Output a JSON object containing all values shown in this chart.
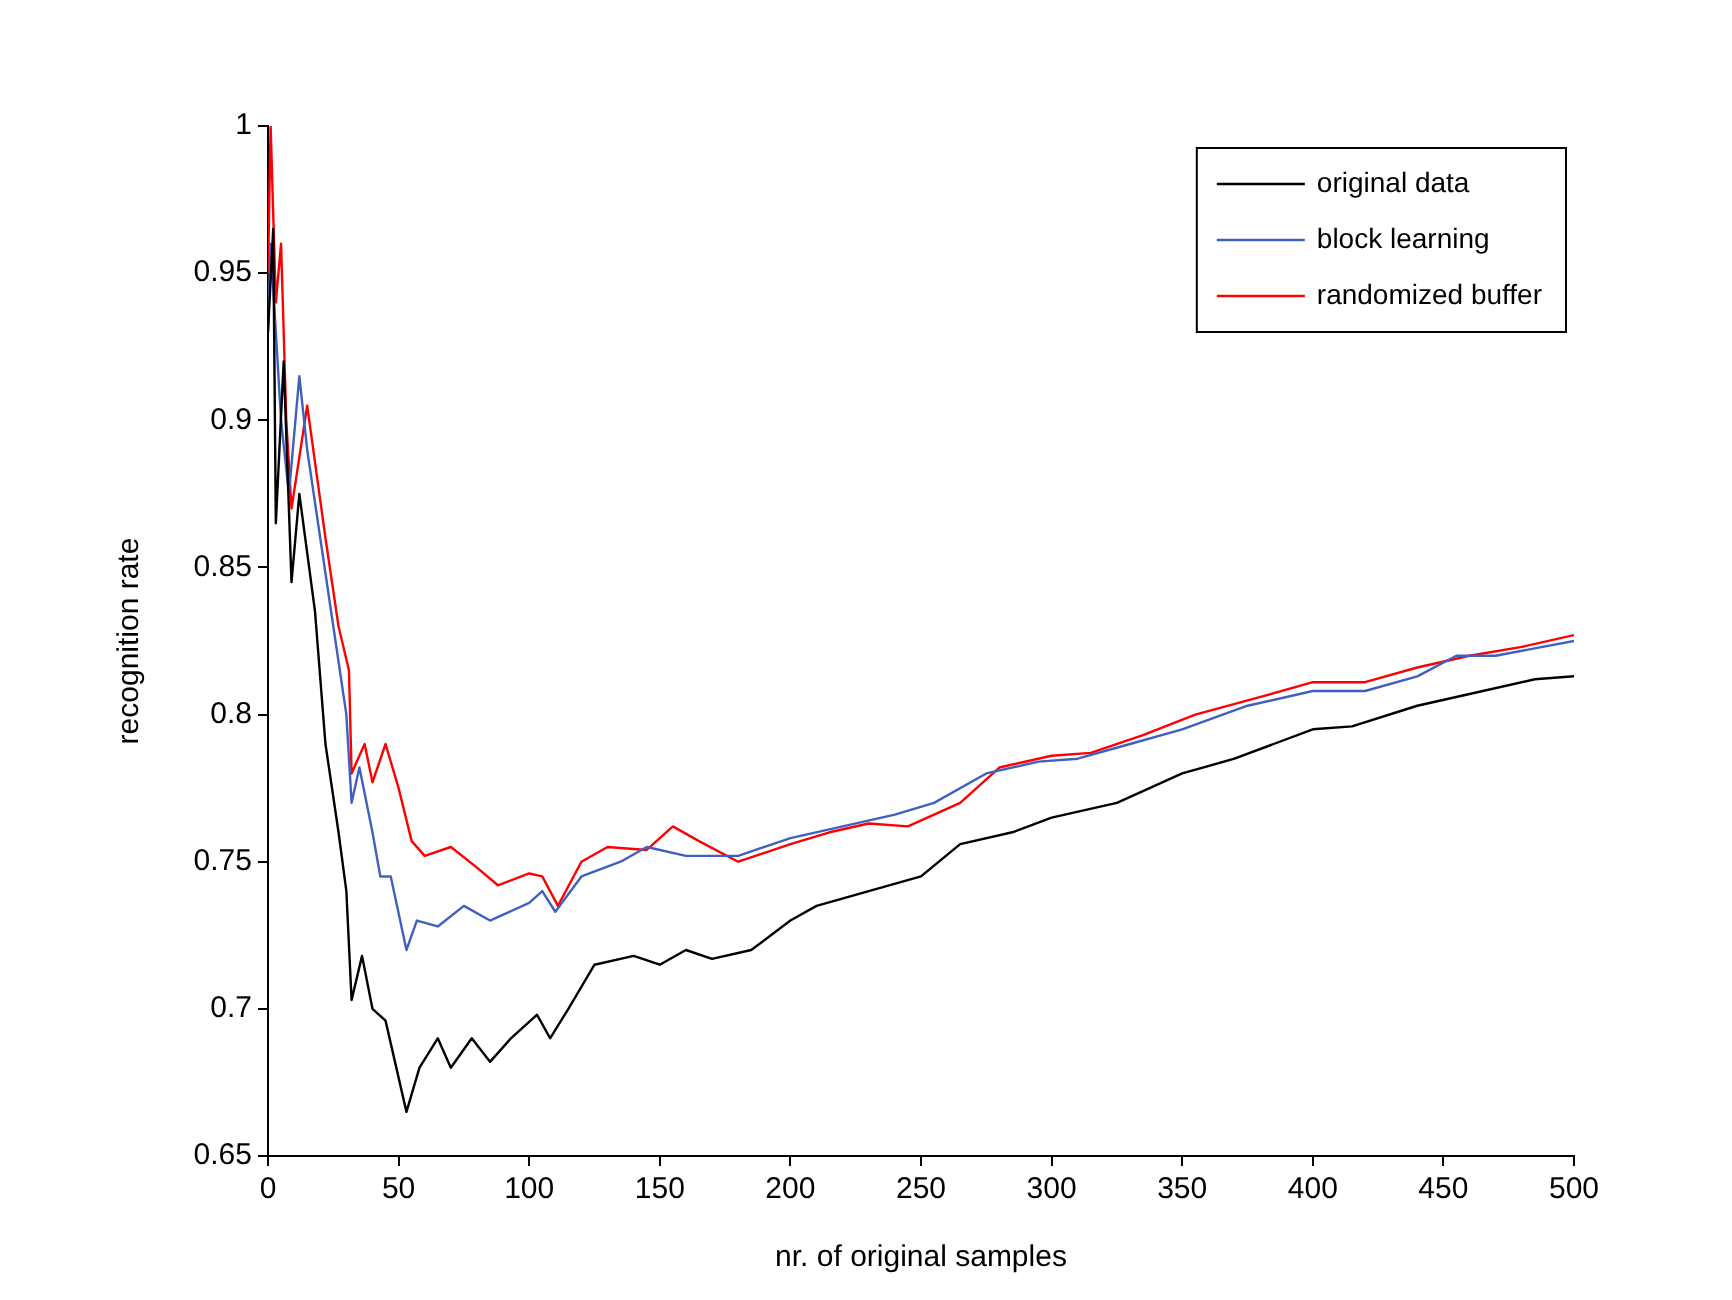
{
  "chart_data": {
    "type": "line",
    "xlabel": "nr. of original samples",
    "ylabel": "recognition rate",
    "xlim": [
      0,
      500
    ],
    "xticks": [
      0,
      50,
      100,
      150,
      200,
      250,
      300,
      350,
      400,
      450,
      500
    ],
    "ylim": [
      0.65,
      1
    ],
    "yticks": [
      0.65,
      0.7,
      0.75,
      0.8,
      0.85,
      0.9,
      0.95,
      1
    ],
    "grid": false,
    "legend": "top right",
    "marker": "none",
    "line_style": "solid",
    "series": [
      {
        "name": "original data",
        "color": "#000000",
        "x": [
          0,
          2,
          3,
          6,
          9,
          12,
          18,
          22,
          27,
          30,
          32,
          36,
          40,
          45,
          53,
          58,
          65,
          70,
          78,
          85,
          93,
          103,
          108,
          115,
          125,
          140,
          150,
          160,
          170,
          185,
          200,
          210,
          230,
          250,
          265,
          285,
          300,
          325,
          350,
          370,
          385,
          400,
          415,
          440,
          460,
          485,
          500
        ],
        "values": [
          0.93,
          0.965,
          0.865,
          0.92,
          0.845,
          0.875,
          0.835,
          0.79,
          0.76,
          0.74,
          0.703,
          0.718,
          0.7,
          0.696,
          0.665,
          0.68,
          0.69,
          0.68,
          0.69,
          0.682,
          0.69,
          0.698,
          0.69,
          0.7,
          0.715,
          0.718,
          0.715,
          0.72,
          0.717,
          0.72,
          0.73,
          0.735,
          0.74,
          0.745,
          0.756,
          0.76,
          0.765,
          0.77,
          0.78,
          0.785,
          0.79,
          0.795,
          0.796,
          0.803,
          0.807,
          0.812,
          0.813
        ]
      },
      {
        "name": "block learning",
        "color": "#4060c0",
        "x": [
          0,
          1,
          5,
          8,
          12,
          15,
          20,
          25,
          30,
          32,
          35,
          40,
          43,
          47,
          53,
          57,
          65,
          75,
          85,
          100,
          105,
          110,
          120,
          135,
          145,
          160,
          180,
          200,
          220,
          240,
          255,
          275,
          295,
          310,
          330,
          350,
          375,
          400,
          420,
          440,
          455,
          470,
          500
        ],
        "values": [
          0.93,
          0.96,
          0.9,
          0.875,
          0.915,
          0.89,
          0.86,
          0.83,
          0.8,
          0.77,
          0.782,
          0.76,
          0.745,
          0.745,
          0.72,
          0.73,
          0.728,
          0.735,
          0.73,
          0.736,
          0.74,
          0.733,
          0.745,
          0.75,
          0.755,
          0.752,
          0.752,
          0.758,
          0.762,
          0.766,
          0.77,
          0.78,
          0.784,
          0.785,
          0.79,
          0.795,
          0.803,
          0.808,
          0.808,
          0.813,
          0.82,
          0.82,
          0.825
        ]
      },
      {
        "name": "randomized buffer",
        "color": "#ff0000",
        "x": [
          0,
          1,
          3,
          5,
          7,
          9,
          15,
          22,
          27,
          31,
          32,
          37,
          40,
          45,
          50,
          55,
          60,
          70,
          80,
          88,
          100,
          105,
          111,
          120,
          130,
          145,
          155,
          165,
          180,
          200,
          215,
          230,
          245,
          265,
          280,
          300,
          315,
          335,
          355,
          380,
          400,
          420,
          440,
          460,
          480,
          500
        ],
        "values": [
          0.95,
          1,
          0.94,
          0.96,
          0.9,
          0.87,
          0.905,
          0.86,
          0.83,
          0.815,
          0.78,
          0.79,
          0.777,
          0.79,
          0.775,
          0.757,
          0.752,
          0.755,
          0.748,
          0.742,
          0.746,
          0.745,
          0.735,
          0.75,
          0.755,
          0.754,
          0.762,
          0.757,
          0.75,
          0.756,
          0.76,
          0.763,
          0.762,
          0.77,
          0.782,
          0.786,
          0.787,
          0.793,
          0.8,
          0.806,
          0.811,
          0.811,
          0.816,
          0.82,
          0.823,
          0.827
        ]
      }
    ]
  }
}
